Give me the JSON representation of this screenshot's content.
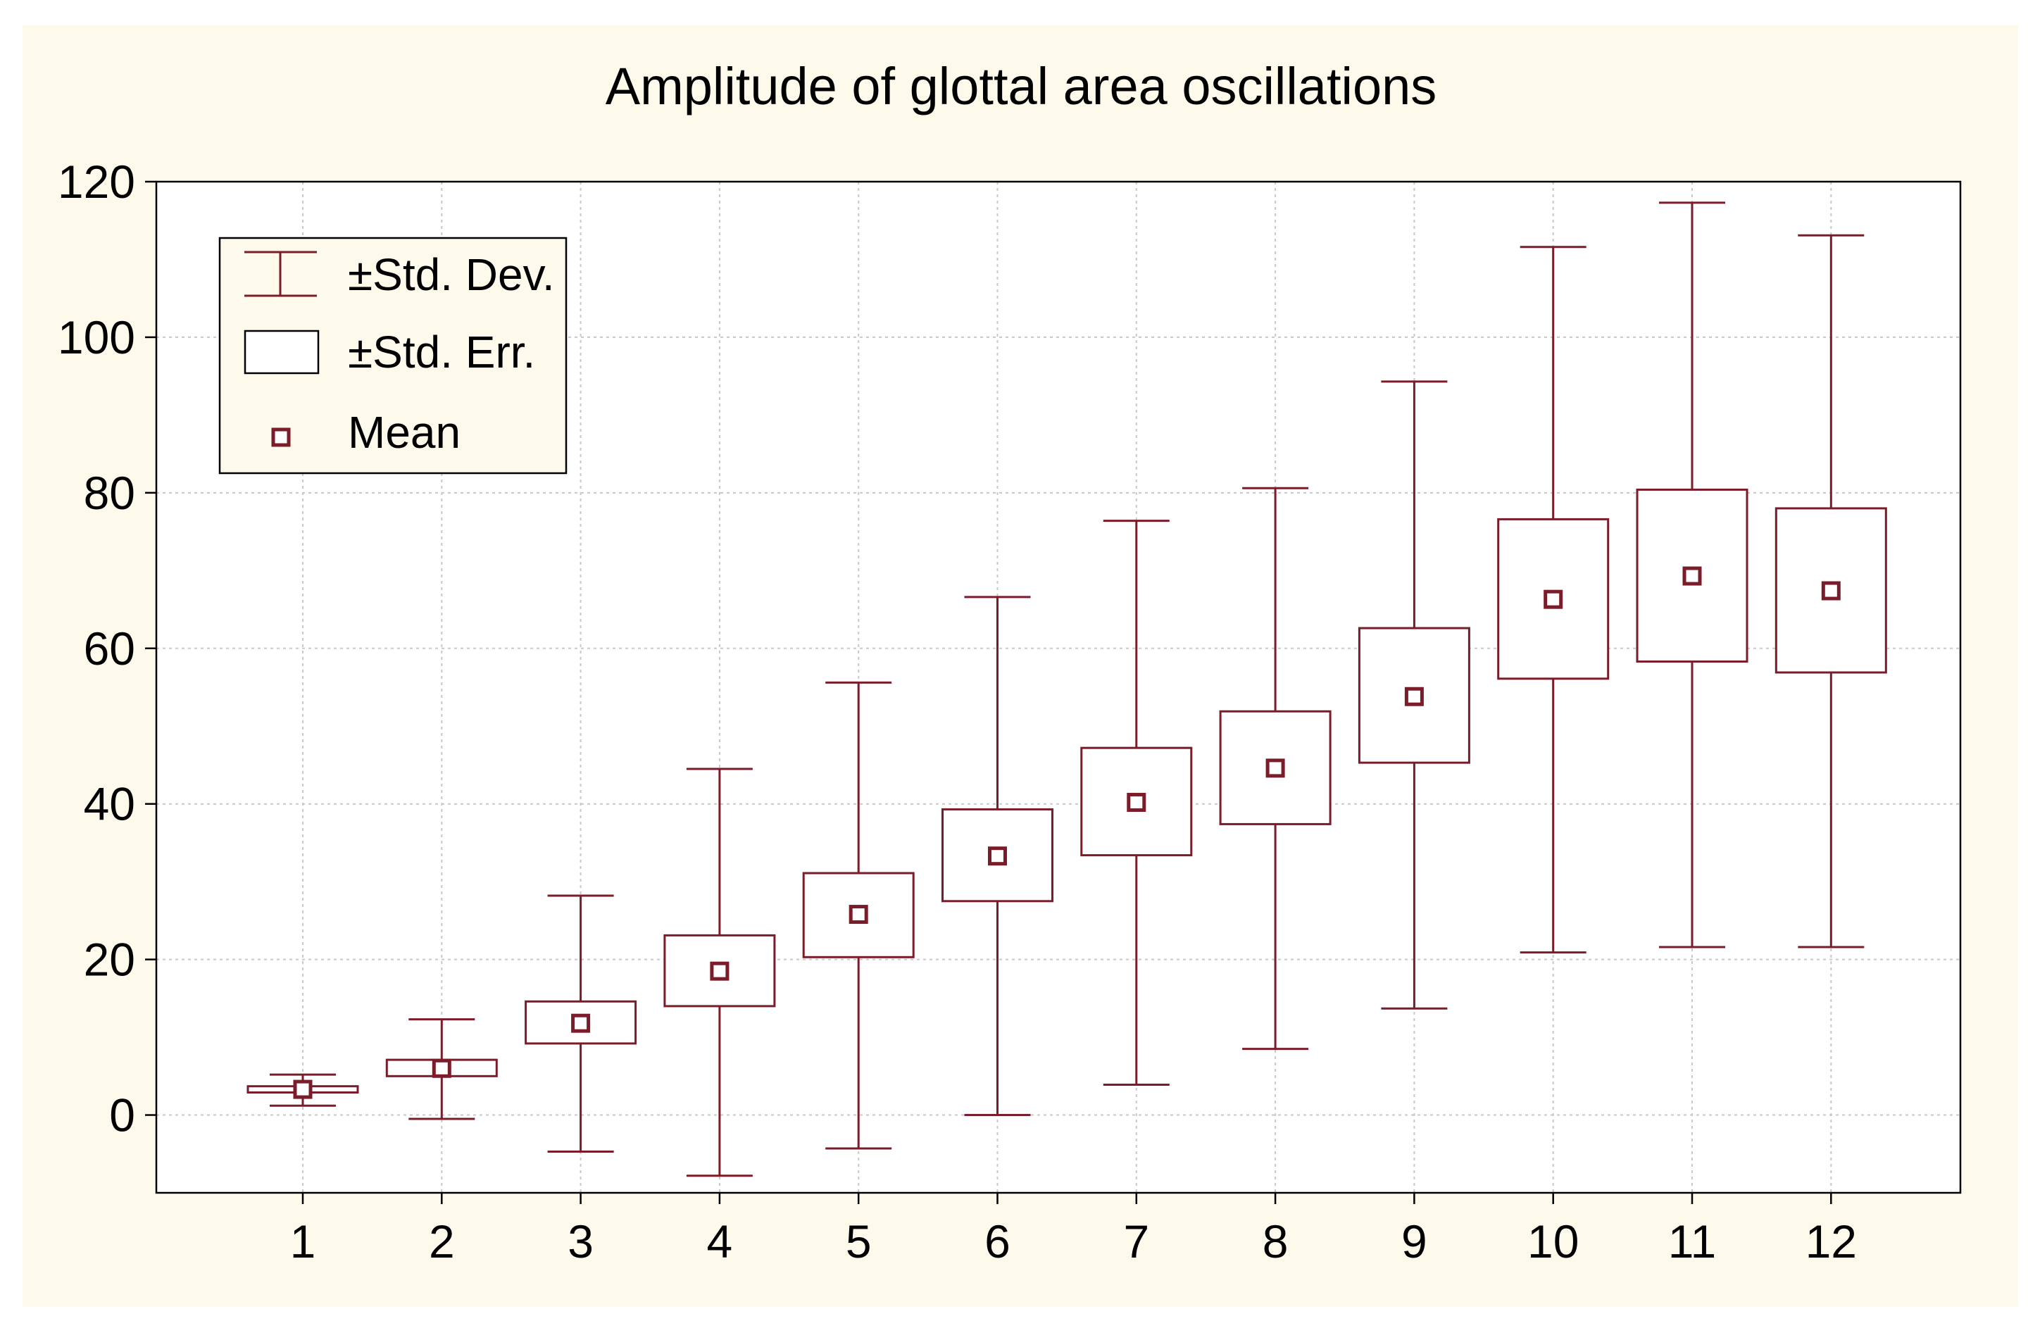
{
  "colors": {
    "background": "#fdfaeb",
    "plot_background": "#ffffff",
    "series": "#7a1c2a",
    "grid": "#c8c8c8",
    "axis": "#000000"
  },
  "legend": {
    "items": [
      {
        "label": "±Std. Dev.",
        "icon": "whisker-icon"
      },
      {
        "label": "±Std. Err.",
        "icon": "box-icon"
      },
      {
        "label": "Mean",
        "icon": "mean-square-icon"
      }
    ],
    "position": "top-left"
  },
  "chart_data": {
    "type": "box",
    "title": "Amplitude of glottal area oscillations",
    "xlabel": "",
    "ylabel": "",
    "categories": [
      "1",
      "2",
      "3",
      "4",
      "5",
      "6",
      "7",
      "8",
      "9",
      "10",
      "11",
      "12"
    ],
    "ylim": [
      -10,
      120
    ],
    "yticks": [
      0,
      20,
      40,
      60,
      80,
      100,
      120
    ],
    "grid": true,
    "series": [
      {
        "name": "Mean",
        "values": [
          3.3,
          6.0,
          11.8,
          18.5,
          25.8,
          33.3,
          40.2,
          44.6,
          53.8,
          66.3,
          69.3,
          67.4
        ]
      },
      {
        "name": "Std. Err. lower",
        "values": [
          2.9,
          5.0,
          9.2,
          14.0,
          20.3,
          27.5,
          33.4,
          37.4,
          45.3,
          56.1,
          58.3,
          56.9
        ]
      },
      {
        "name": "Std. Err. upper",
        "values": [
          3.7,
          7.1,
          14.6,
          23.1,
          31.1,
          39.3,
          47.2,
          51.9,
          62.6,
          76.6,
          80.4,
          78.0
        ]
      },
      {
        "name": "Std. Dev. lower",
        "values": [
          1.2,
          -0.5,
          -4.7,
          -7.8,
          -4.3,
          0.0,
          3.9,
          8.5,
          13.7,
          20.9,
          21.6,
          21.6
        ]
      },
      {
        "name": "Std. Dev. upper",
        "values": [
          5.2,
          12.3,
          28.2,
          44.5,
          55.6,
          66.6,
          76.4,
          80.6,
          94.3,
          111.6,
          117.3,
          113.1
        ]
      }
    ]
  }
}
